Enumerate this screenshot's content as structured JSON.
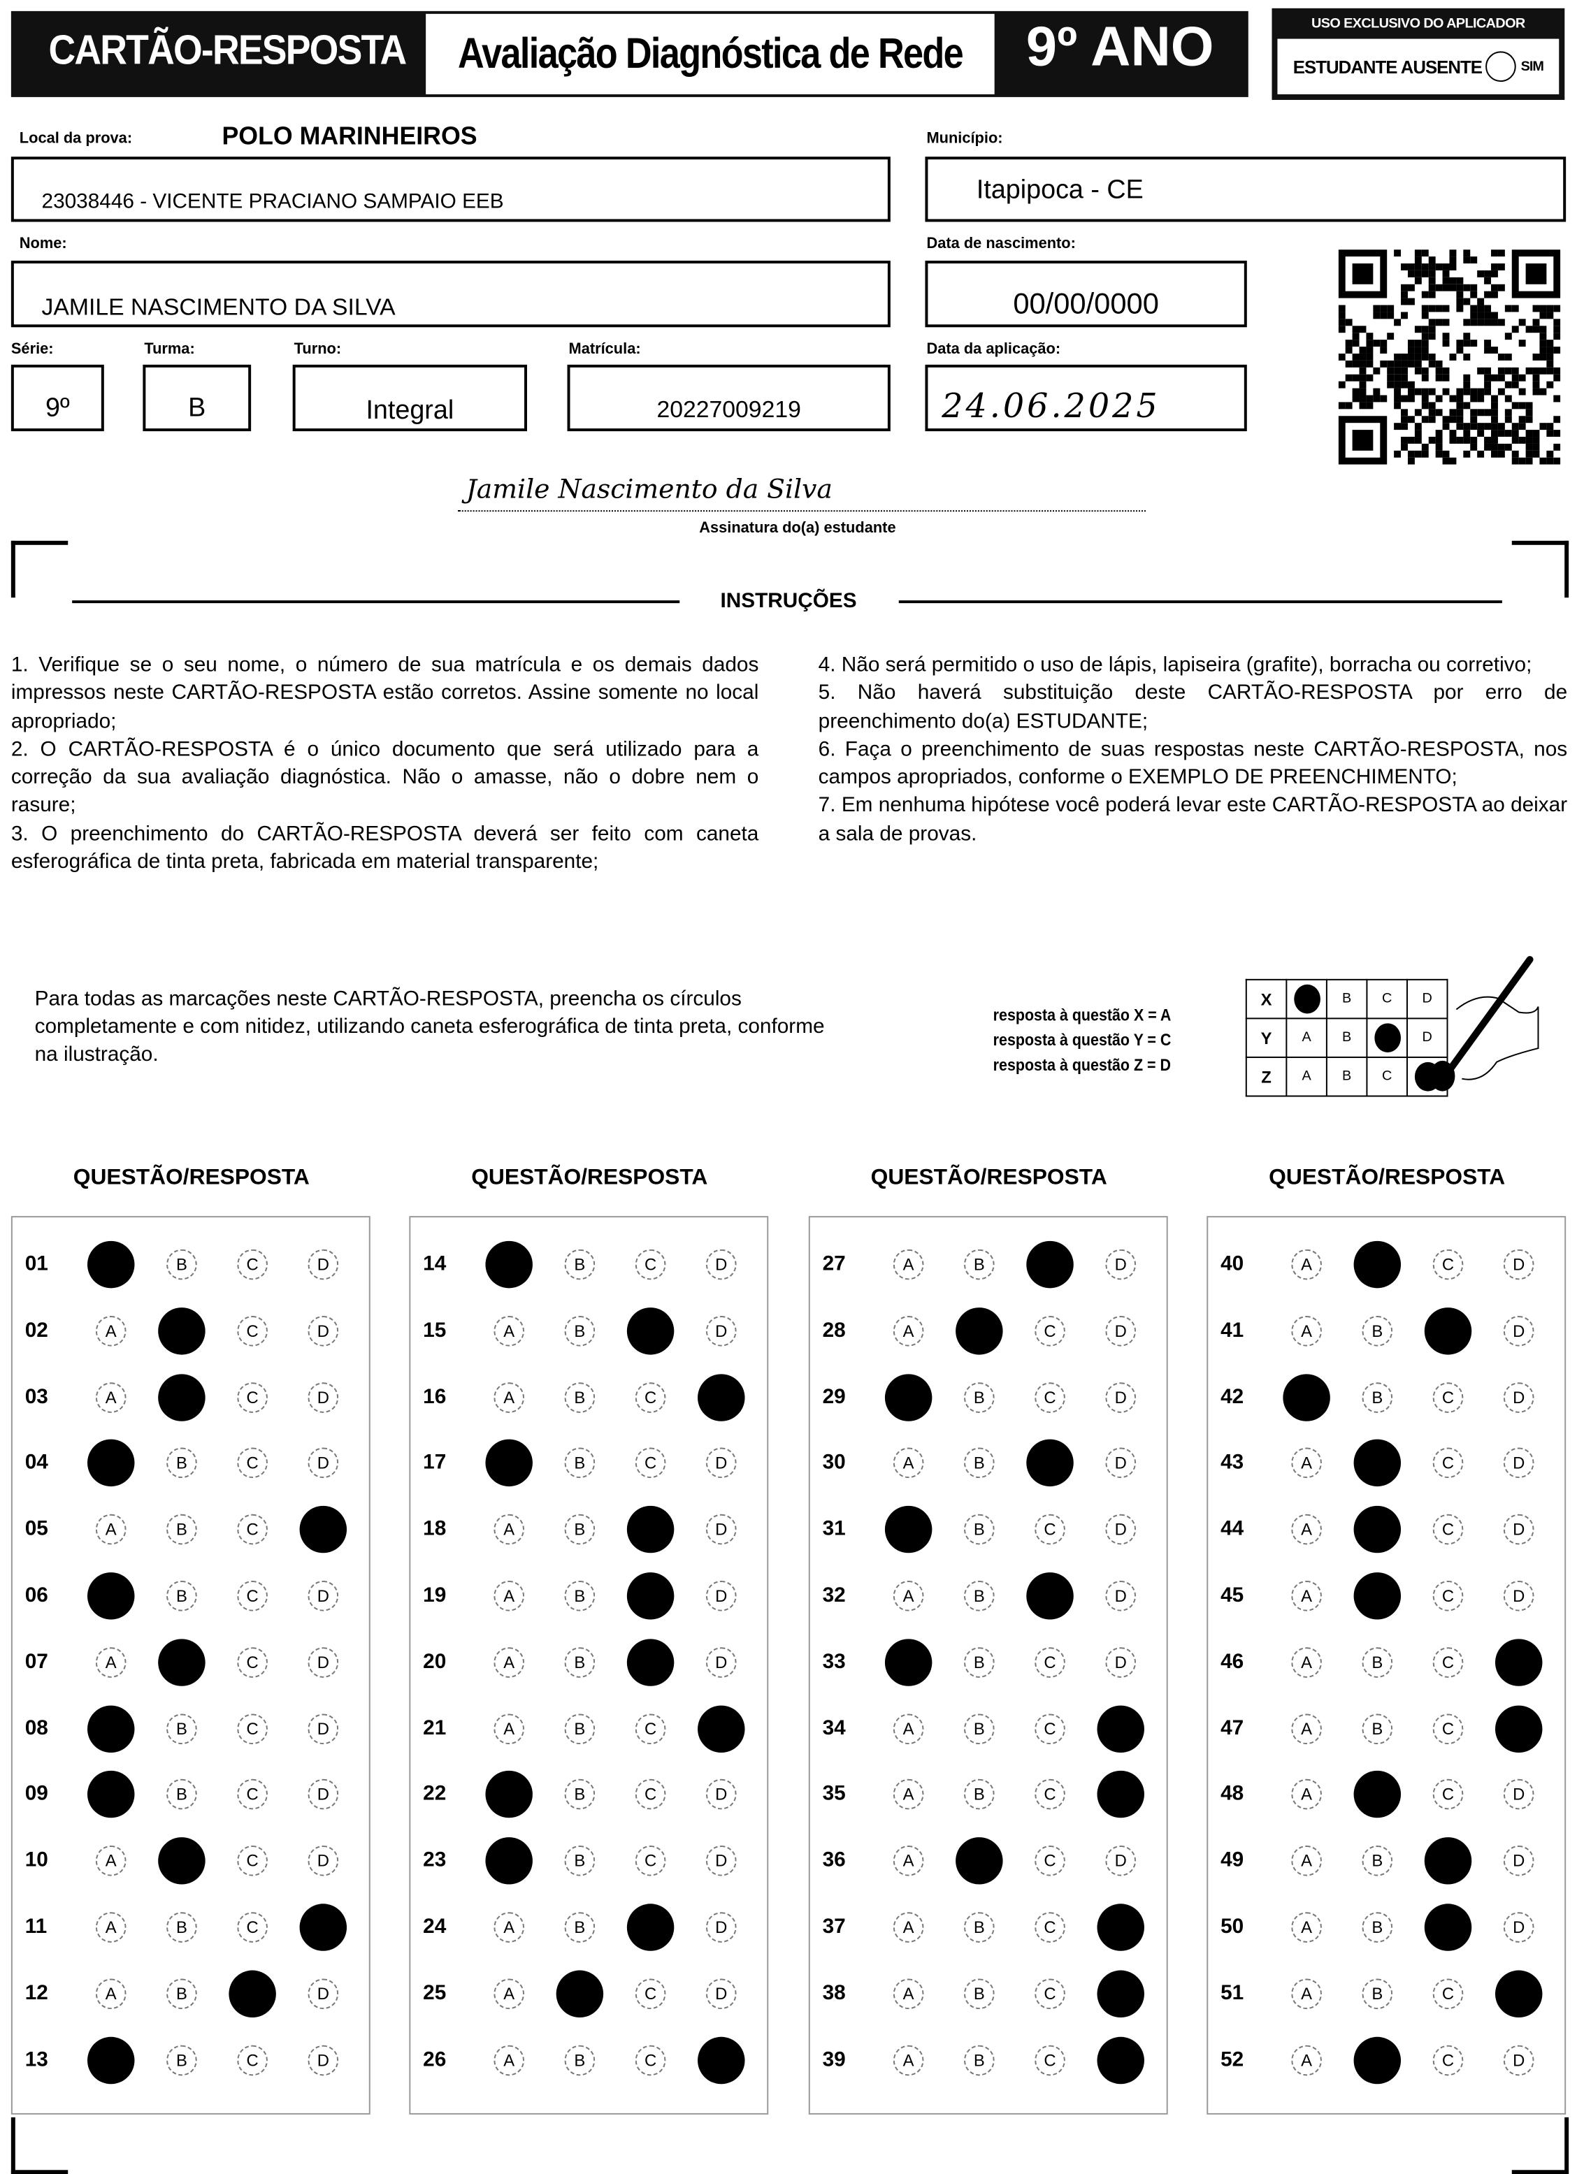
{
  "header": {
    "title": "CARTÃO-RESPOSTA",
    "assessment": "Avaliação Diagnóstica de Rede",
    "grade": "9º ANO",
    "applicator_box": {
      "title": "USO EXCLUSIVO DO APLICADOR",
      "absent_label": "ESTUDANTE AUSENTE",
      "option": "SIM"
    }
  },
  "fields": {
    "local_label": "Local da prova:",
    "local_value": "POLO MARINHEIROS",
    "school": "23038446 - VICENTE PRACIANO SAMPAIO EEB",
    "municipio_label": "Município:",
    "municipio": "Itapipoca - CE",
    "nome_label": "Nome:",
    "nome": "JAMILE NASCIMENTO DA SILVA",
    "nascimento_label": "Data de nascimento:",
    "nascimento": "00/00/0000",
    "serie_label": "Série:",
    "serie": "9º",
    "turma_label": "Turma:",
    "turma": "B",
    "turno_label": "Turno:",
    "turno": "Integral",
    "matricula_label": "Matrícula:",
    "matricula": "20227009219",
    "aplicacao_label": "Data da aplicação:",
    "aplicacao": "24.06.2025"
  },
  "signature": {
    "handwritten": "Jamile Nascimento da Silva",
    "label": "Assinatura do(a) estudante"
  },
  "instructions": {
    "title": "INSTRUÇÕES",
    "left": [
      "1. Verifique se o seu nome, o número de sua matrícula e os demais dados impressos neste CARTÃO-RESPOSTA estão corretos. Assine somente no local apropriado;",
      "2. O CARTÃO-RESPOSTA é o único documento que será utilizado para a correção da sua avaliação diagnóstica. Não o amasse, não o dobre nem o rasure;",
      "3. O preenchimento do CARTÃO-RESPOSTA deverá ser feito com caneta esferográfica de tinta preta, fabricada em material transparente;"
    ],
    "right": [
      "4. Não será permitido o uso de lápis, lapiseira (grafite), borracha ou corretivo;",
      "5. Não haverá substituição deste CARTÃO-RESPOSTA por erro de preenchimento do(a) ESTUDANTE;",
      "6. Faça o preenchimento de suas respostas neste CARTÃO-RESPOSTA, nos campos apropriados, conforme o EXEMPLO DE PREENCHIMENTO;",
      "7. Em nenhuma hipótese você poderá levar este CARTÃO-RESPOSTA ao deixar a sala de provas."
    ]
  },
  "fill_note": "Para todas as marcações neste CARTÃO-RESPOSTA, preencha os círculos completamente e com nitidez, utilizando caneta esferográfica de tinta preta, conforme na ilustração.",
  "example": {
    "lines": [
      "resposta à questão X = A",
      "resposta à questão Y = C",
      "resposta à questão Z = D"
    ],
    "rows": [
      {
        "q": "X",
        "answer": "A"
      },
      {
        "q": "Y",
        "answer": "C"
      },
      {
        "q": "Z",
        "answer": "D"
      }
    ]
  },
  "options": [
    "A",
    "B",
    "C",
    "D"
  ],
  "column_header": "QUESTÃO/RESPOSTA",
  "answers": [
    {
      "q": "01",
      "a": "A"
    },
    {
      "q": "02",
      "a": "B"
    },
    {
      "q": "03",
      "a": "B"
    },
    {
      "q": "04",
      "a": "A"
    },
    {
      "q": "05",
      "a": "D"
    },
    {
      "q": "06",
      "a": "A"
    },
    {
      "q": "07",
      "a": "B"
    },
    {
      "q": "08",
      "a": "A"
    },
    {
      "q": "09",
      "a": "A"
    },
    {
      "q": "10",
      "a": "B"
    },
    {
      "q": "11",
      "a": "D"
    },
    {
      "q": "12",
      "a": "C"
    },
    {
      "q": "13",
      "a": "A"
    },
    {
      "q": "14",
      "a": "A"
    },
    {
      "q": "15",
      "a": "C"
    },
    {
      "q": "16",
      "a": "D"
    },
    {
      "q": "17",
      "a": "A"
    },
    {
      "q": "18",
      "a": "C"
    },
    {
      "q": "19",
      "a": "C"
    },
    {
      "q": "20",
      "a": "C"
    },
    {
      "q": "21",
      "a": "D"
    },
    {
      "q": "22",
      "a": "A"
    },
    {
      "q": "23",
      "a": "A"
    },
    {
      "q": "24",
      "a": "C"
    },
    {
      "q": "25",
      "a": "B"
    },
    {
      "q": "26",
      "a": "D"
    },
    {
      "q": "27",
      "a": "C"
    },
    {
      "q": "28",
      "a": "B"
    },
    {
      "q": "29",
      "a": "A"
    },
    {
      "q": "30",
      "a": "C"
    },
    {
      "q": "31",
      "a": "A"
    },
    {
      "q": "32",
      "a": "C"
    },
    {
      "q": "33",
      "a": "A"
    },
    {
      "q": "34",
      "a": "D"
    },
    {
      "q": "35",
      "a": "D"
    },
    {
      "q": "36",
      "a": "B"
    },
    {
      "q": "37",
      "a": "D"
    },
    {
      "q": "38",
      "a": "D"
    },
    {
      "q": "39",
      "a": "D"
    },
    {
      "q": "40",
      "a": "B"
    },
    {
      "q": "41",
      "a": "C"
    },
    {
      "q": "42",
      "a": "A"
    },
    {
      "q": "43",
      "a": "B"
    },
    {
      "q": "44",
      "a": "B"
    },
    {
      "q": "45",
      "a": "B"
    },
    {
      "q": "46",
      "a": "D"
    },
    {
      "q": "47",
      "a": "D"
    },
    {
      "q": "48",
      "a": "B"
    },
    {
      "q": "49",
      "a": "C"
    },
    {
      "q": "50",
      "a": "C"
    },
    {
      "q": "51",
      "a": "D"
    },
    {
      "q": "52",
      "a": "B"
    }
  ]
}
